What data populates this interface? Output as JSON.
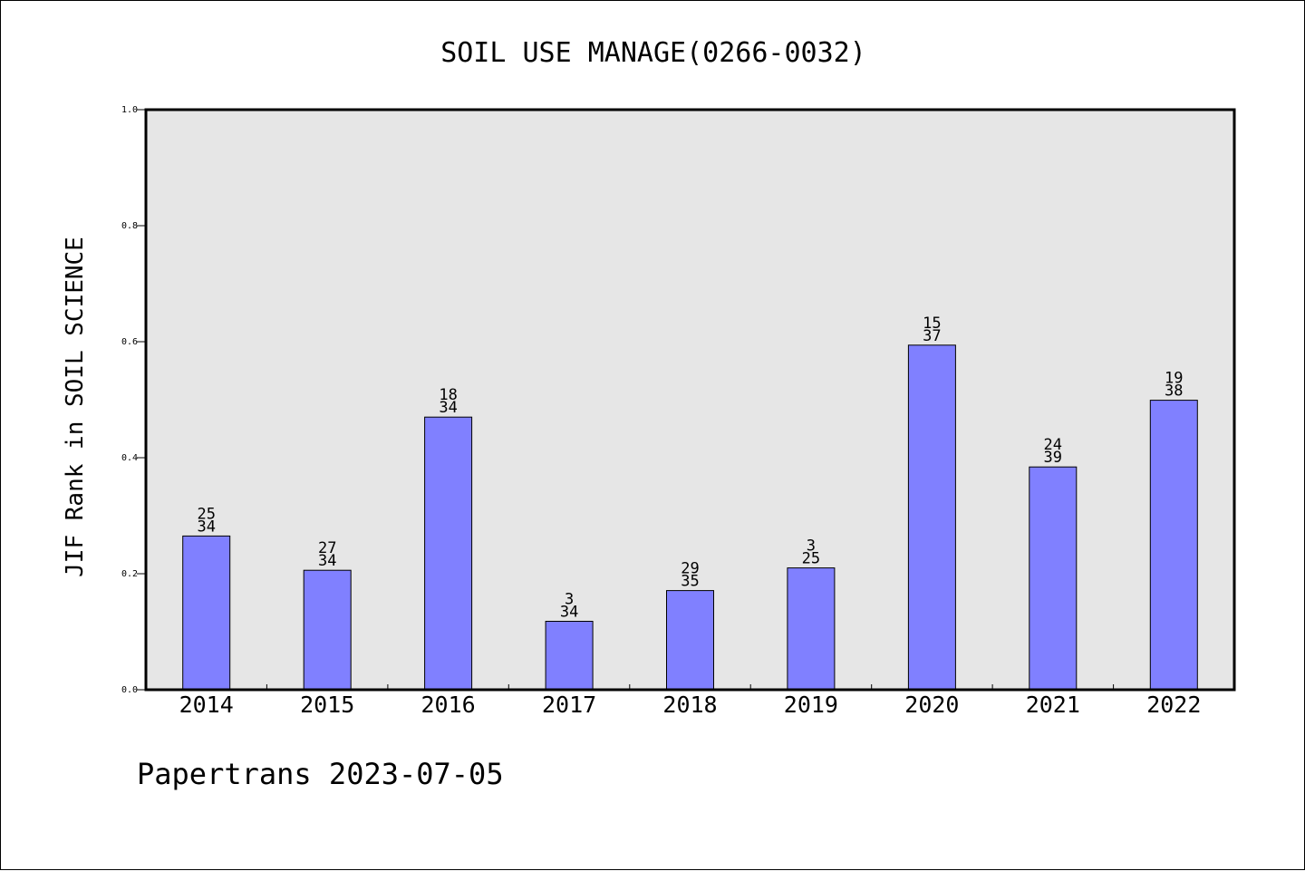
{
  "chart_data": {
    "type": "bar",
    "title": "SOIL USE MANAGE(0266-0032)",
    "ylabel": "JIF Rank in SOIL SCIENCE",
    "xlabel": "",
    "ylim": [
      0,
      1.0
    ],
    "yticks": [
      "0.0",
      "0.2",
      "0.4",
      "0.6",
      "0.8",
      "1.0"
    ],
    "grid": false,
    "categories": [
      "2014",
      "2015",
      "2016",
      "2017",
      "2018",
      "2019",
      "2020",
      "2021",
      "2022"
    ],
    "values": [
      0.265,
      0.206,
      0.47,
      0.118,
      0.171,
      0.21,
      0.594,
      0.384,
      0.499
    ],
    "bar_labels": [
      {
        "rank": "25",
        "total": "34"
      },
      {
        "rank": "27",
        "total": "34"
      },
      {
        "rank": "18",
        "total": "34"
      },
      {
        "rank": "3",
        "total": "34"
      },
      {
        "rank": "29",
        "total": "35"
      },
      {
        "rank": "3",
        "total": "25"
      },
      {
        "rank": "15",
        "total": "37"
      },
      {
        "rank": "24",
        "total": "39"
      },
      {
        "rank": "19",
        "total": "38"
      }
    ],
    "colors": {
      "bar": "#8080ff",
      "plot_background": "#e6e6e6",
      "axis": "#000000"
    }
  },
  "footer": {
    "credit": "Papertrans 2023-07-05"
  }
}
